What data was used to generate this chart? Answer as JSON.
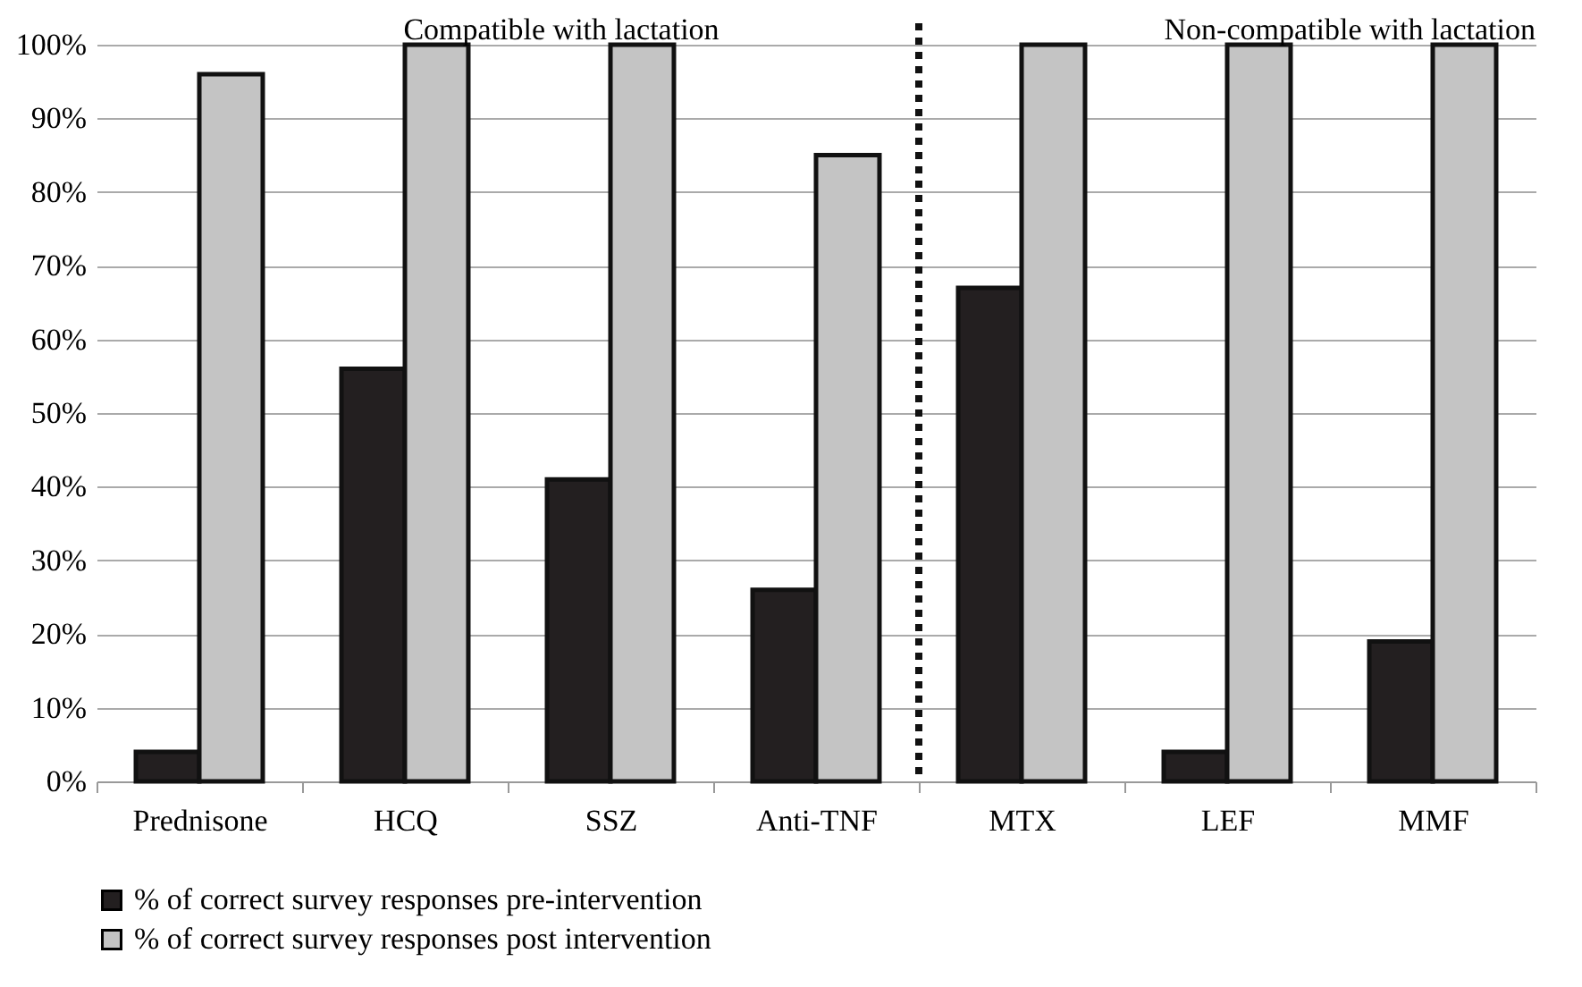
{
  "chart_data": {
    "type": "bar",
    "categories": [
      "Prednisone",
      "HCQ",
      "SSZ",
      "Anti-TNF",
      "MTX",
      "LEF",
      "MMF"
    ],
    "series": [
      {
        "name": "% of correct survey responses pre-intervention",
        "color": "#231f20",
        "values": [
          4,
          56,
          41,
          26,
          67,
          4,
          19
        ]
      },
      {
        "name": "% of correct survey responses post intervention",
        "color": "#c4c4c4",
        "values": [
          96,
          100,
          100,
          85,
          100,
          100,
          100
        ]
      }
    ],
    "ylim": [
      0,
      100
    ],
    "yticks": [
      {
        "value": 0,
        "label": "0%"
      },
      {
        "value": 10,
        "label": "10%"
      },
      {
        "value": 20,
        "label": "20%"
      },
      {
        "value": 30,
        "label": "30%"
      },
      {
        "value": 40,
        "label": "40%"
      },
      {
        "value": 50,
        "label": "50%"
      },
      {
        "value": 60,
        "label": "60%"
      },
      {
        "value": 70,
        "label": "70%"
      },
      {
        "value": 80,
        "label": "80%"
      },
      {
        "value": 90,
        "label": "90%"
      },
      {
        "value": 100,
        "label": "100%"
      }
    ],
    "annotations": [
      "Compatible with lactation",
      "Non-compatible with lactation"
    ],
    "ref_lines": [
      {
        "axis": "x",
        "value": "MTX",
        "line_style": "dotted"
      }
    ],
    "grid": "y",
    "legend": "bottom"
  }
}
